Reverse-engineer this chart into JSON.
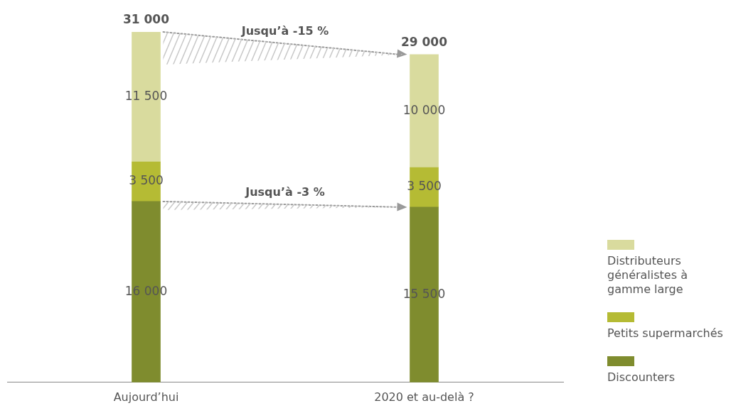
{
  "chart_data": {
    "type": "bar",
    "stacked": true,
    "categories": [
      "Aujourd’hui",
      "2020 et au-delà ?"
    ],
    "series": [
      {
        "name": "Discounters",
        "color": "#7f8c2e",
        "values": [
          16000,
          15500
        ],
        "value_labels": [
          "16 000",
          "15 500"
        ]
      },
      {
        "name": "Petits supermarchés",
        "color": "#b5bb34",
        "values": [
          3500,
          3500
        ],
        "value_labels": [
          "3 500",
          "3 500"
        ]
      },
      {
        "name": "Distributeurs généralistes à gamme large",
        "color": "#d9db9e",
        "values": [
          11500,
          10000
        ],
        "value_labels": [
          "11 500",
          "10 000"
        ]
      }
    ],
    "totals": [
      "31 000",
      "29 000"
    ],
    "annotations": [
      "Jusqu’à -15 %",
      "Jusqu’à -3 %"
    ],
    "legend": "right",
    "grid": false
  }
}
